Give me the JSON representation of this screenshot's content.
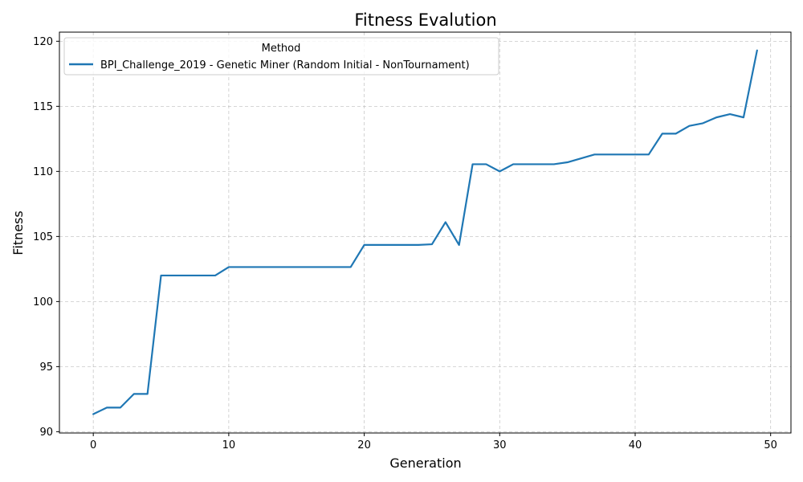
{
  "chart_data": {
    "type": "line",
    "title": "Fitness Evalution",
    "xlabel": "Generation",
    "ylabel": "Fitness",
    "xlim": [
      -2.5,
      51.5
    ],
    "ylim": [
      89.9,
      120.7
    ],
    "xticks": [
      0,
      10,
      20,
      30,
      40,
      50
    ],
    "yticks": [
      90,
      95,
      100,
      105,
      110,
      115,
      120
    ],
    "grid": true,
    "legend": {
      "title": "Method",
      "placement": "top-left"
    },
    "series": [
      {
        "name": "BPI_Challenge_2019 - Genetic Miner (Random Initial - NonTournament)",
        "color": "#1f77b4",
        "x": [
          0,
          1,
          2,
          3,
          4,
          5,
          6,
          7,
          8,
          9,
          10,
          11,
          12,
          13,
          14,
          15,
          16,
          17,
          18,
          19,
          20,
          21,
          22,
          23,
          24,
          25,
          26,
          27,
          28,
          29,
          30,
          31,
          32,
          33,
          34,
          35,
          36,
          37,
          38,
          39,
          40,
          41,
          42,
          43,
          44,
          45,
          46,
          47,
          48,
          49
        ],
        "y": [
          91.35,
          91.85,
          91.85,
          92.9,
          92.9,
          102.0,
          102.0,
          102.0,
          102.0,
          102.0,
          102.65,
          102.65,
          102.65,
          102.65,
          102.65,
          102.65,
          102.65,
          102.65,
          102.65,
          102.65,
          104.35,
          104.35,
          104.35,
          104.35,
          104.35,
          104.4,
          106.1,
          104.35,
          110.55,
          110.55,
          110.0,
          110.55,
          110.55,
          110.55,
          110.55,
          110.7,
          111.0,
          111.3,
          111.3,
          111.3,
          111.3,
          111.3,
          112.9,
          112.9,
          113.5,
          113.7,
          114.15,
          114.4,
          114.15,
          119.3
        ]
      }
    ]
  }
}
